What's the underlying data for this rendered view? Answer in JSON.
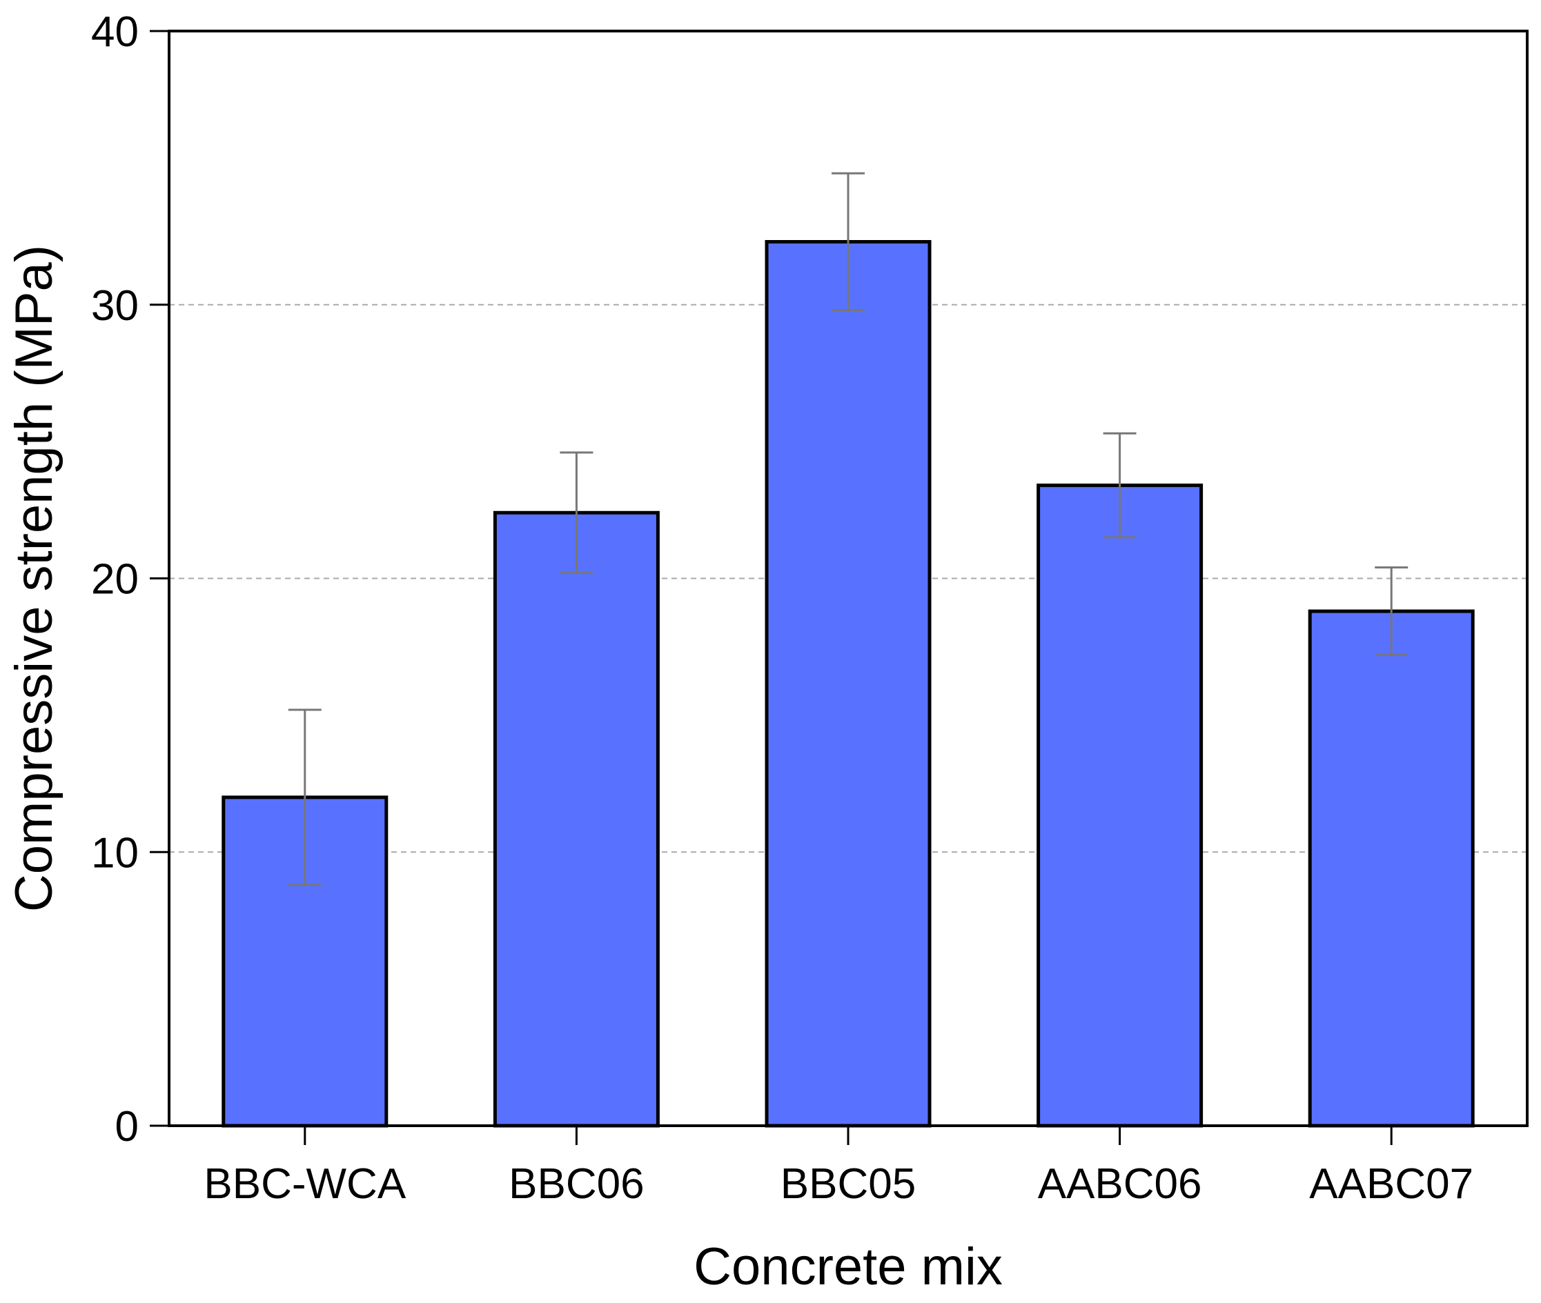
{
  "chart_data": {
    "type": "bar",
    "title": "",
    "xlabel": "Concrete mix",
    "ylabel": "Compressive strength (MPa)",
    "categories": [
      "BBC-WCA",
      "BBC06",
      "BBC05",
      "AABC06",
      "AABC07"
    ],
    "values": [
      12.0,
      22.4,
      32.3,
      23.4,
      18.8
    ],
    "errors": [
      3.2,
      2.2,
      2.5,
      1.9,
      1.6
    ],
    "ylim": [
      0,
      40
    ],
    "yticks": [
      0,
      10,
      20,
      30,
      40
    ],
    "grid_lines": [
      10,
      20,
      30
    ],
    "grid": true,
    "bar_color": "#5872ff",
    "edge_color": "#000000",
    "error_color": "#777777",
    "grid_color": "#aaaaaa"
  }
}
